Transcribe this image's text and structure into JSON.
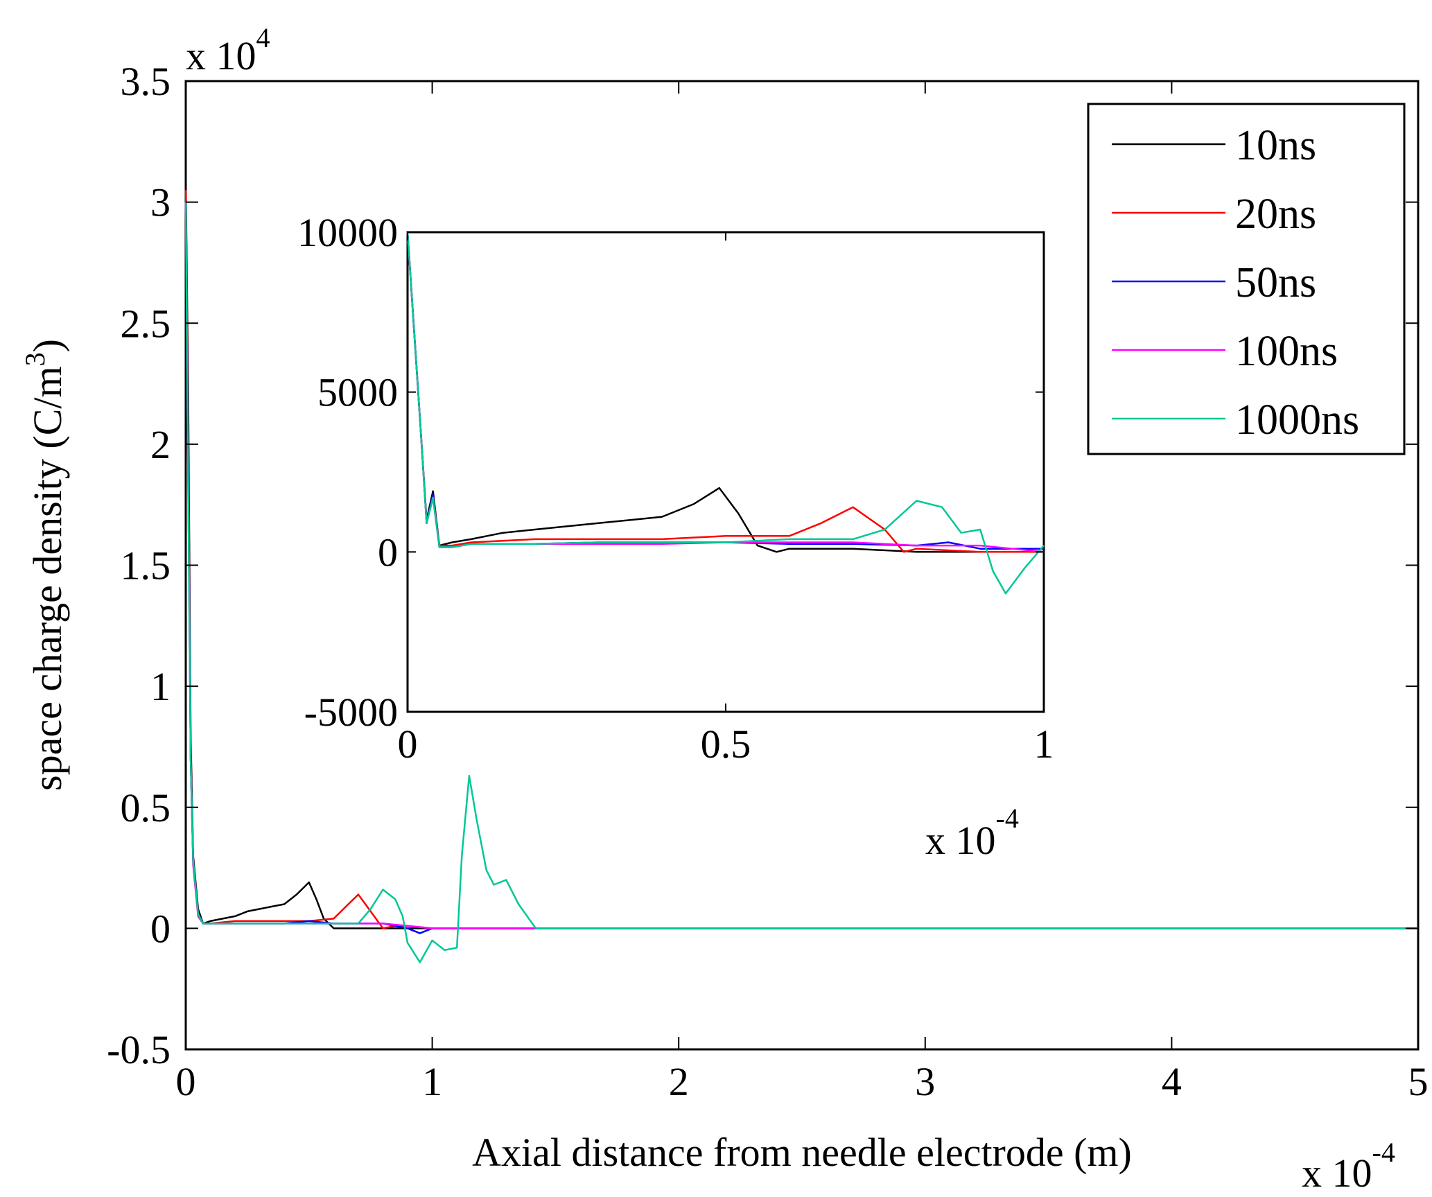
{
  "chart_data": [
    {
      "id": "main",
      "type": "line",
      "xlabel": "Axial distance from needle electrode (m)",
      "ylabel": "space charge density (C/m",
      "ylabel_sup": "3",
      "ylabel_close": ")",
      "xlim": [
        0,
        5
      ],
      "ylim": [
        -0.5,
        3.5
      ],
      "xticks": [
        0,
        1,
        2,
        3,
        4,
        5
      ],
      "yticks": [
        -0.5,
        0,
        0.5,
        1,
        1.5,
        2,
        2.5,
        3,
        3.5
      ],
      "xtick_labels": [
        "0",
        "1",
        "2",
        "3",
        "4",
        "5"
      ],
      "ytick_labels": [
        "-0.5",
        "0",
        "0.5",
        "1",
        "1.5",
        "2",
        "2.5",
        "3",
        "3.5"
      ],
      "x_multiplier_base": "x 10",
      "x_multiplier_exp": "-4",
      "y_multiplier_base": "x 10",
      "y_multiplier_exp": "4",
      "series": [
        {
          "name": "10ns",
          "color": "#000000",
          "points": [
            [
              0,
              3.1
            ],
            [
              0.01,
              2.2
            ],
            [
              0.02,
              0.8
            ],
            [
              0.03,
              0.3
            ],
            [
              0.05,
              0.08
            ],
            [
              0.07,
              0.02
            ],
            [
              0.1,
              0.03
            ],
            [
              0.15,
              0.04
            ],
            [
              0.2,
              0.05
            ],
            [
              0.25,
              0.07
            ],
            [
              0.3,
              0.08
            ],
            [
              0.35,
              0.09
            ],
            [
              0.4,
              0.1
            ],
            [
              0.45,
              0.14
            ],
            [
              0.5,
              0.19
            ],
            [
              0.53,
              0.12
            ],
            [
              0.56,
              0.04
            ],
            [
              0.6,
              0.0
            ],
            [
              0.7,
              0.0
            ],
            [
              0.8,
              0.0
            ],
            [
              0.9,
              0.0
            ],
            [
              1.0,
              0.0
            ],
            [
              1.4,
              0.0
            ],
            [
              5,
              0.0
            ]
          ]
        },
        {
          "name": "20ns",
          "color": "#ff0000",
          "points": [
            [
              0,
              3.05
            ],
            [
              0.01,
              2.0
            ],
            [
              0.02,
              0.7
            ],
            [
              0.03,
              0.28
            ],
            [
              0.05,
              0.06
            ],
            [
              0.07,
              0.02
            ],
            [
              0.1,
              0.02
            ],
            [
              0.2,
              0.03
            ],
            [
              0.3,
              0.03
            ],
            [
              0.4,
              0.03
            ],
            [
              0.5,
              0.03
            ],
            [
              0.6,
              0.04
            ],
            [
              0.65,
              0.09
            ],
            [
              0.7,
              0.14
            ],
            [
              0.75,
              0.07
            ],
            [
              0.8,
              0.0
            ],
            [
              0.85,
              0.01
            ],
            [
              0.9,
              0.01
            ],
            [
              1.0,
              0.0
            ],
            [
              5,
              0.0
            ]
          ]
        },
        {
          "name": "50ns",
          "color": "#0000ff",
          "points": [
            [
              0,
              3.0
            ],
            [
              0.01,
              1.9
            ],
            [
              0.02,
              0.7
            ],
            [
              0.03,
              0.27
            ],
            [
              0.05,
              0.06
            ],
            [
              0.07,
              0.02
            ],
            [
              0.1,
              0.02
            ],
            [
              0.2,
              0.02
            ],
            [
              0.3,
              0.02
            ],
            [
              0.4,
              0.02
            ],
            [
              0.5,
              0.03
            ],
            [
              0.6,
              0.02
            ],
            [
              0.7,
              0.02
            ],
            [
              0.8,
              0.02
            ],
            [
              0.9,
              0.0
            ],
            [
              0.95,
              -0.02
            ],
            [
              1.0,
              0.0
            ],
            [
              5,
              0.0
            ]
          ]
        },
        {
          "name": "100ns",
          "color": "#ff00ff",
          "points": [
            [
              0,
              3.0
            ],
            [
              0.01,
              1.8
            ],
            [
              0.02,
              0.7
            ],
            [
              0.03,
              0.26
            ],
            [
              0.05,
              0.05
            ],
            [
              0.07,
              0.02
            ],
            [
              0.1,
              0.02
            ],
            [
              0.2,
              0.02
            ],
            [
              0.3,
              0.02
            ],
            [
              0.4,
              0.02
            ],
            [
              0.5,
              0.02
            ],
            [
              0.6,
              0.02
            ],
            [
              0.7,
              0.02
            ],
            [
              0.8,
              0.02
            ],
            [
              0.9,
              0.01
            ],
            [
              1.0,
              0.0
            ],
            [
              1.4,
              0.0
            ],
            [
              5,
              0.0
            ]
          ]
        },
        {
          "name": "1000ns",
          "color": "#00c896",
          "points": [
            [
              0,
              3.0
            ],
            [
              0.01,
              1.8
            ],
            [
              0.02,
              0.7
            ],
            [
              0.03,
              0.28
            ],
            [
              0.05,
              0.06
            ],
            [
              0.07,
              0.02
            ],
            [
              0.1,
              0.02
            ],
            [
              0.2,
              0.02
            ],
            [
              0.3,
              0.02
            ],
            [
              0.4,
              0.02
            ],
            [
              0.5,
              0.02
            ],
            [
              0.6,
              0.02
            ],
            [
              0.7,
              0.02
            ],
            [
              0.75,
              0.08
            ],
            [
              0.8,
              0.16
            ],
            [
              0.85,
              0.12
            ],
            [
              0.88,
              0.05
            ],
            [
              0.9,
              -0.06
            ],
            [
              0.95,
              -0.14
            ],
            [
              1.0,
              -0.05
            ],
            [
              1.05,
              -0.09
            ],
            [
              1.1,
              -0.08
            ],
            [
              1.12,
              0.3
            ],
            [
              1.15,
              0.63
            ],
            [
              1.18,
              0.45
            ],
            [
              1.22,
              0.24
            ],
            [
              1.25,
              0.18
            ],
            [
              1.3,
              0.2
            ],
            [
              1.35,
              0.1
            ],
            [
              1.42,
              0.0
            ],
            [
              5,
              0.0
            ]
          ]
        }
      ],
      "legend": {
        "position": "top-right"
      }
    },
    {
      "id": "inset",
      "type": "line",
      "xlim": [
        0,
        1
      ],
      "ylim": [
        -5000,
        10000
      ],
      "xticks": [
        0,
        0.5,
        1
      ],
      "yticks": [
        -5000,
        0,
        5000,
        10000
      ],
      "xtick_labels": [
        "0",
        "0.5",
        "1"
      ],
      "ytick_labels": [
        "-5000",
        "0",
        "5000",
        "10000"
      ],
      "x_multiplier_base": "x 10",
      "x_multiplier_exp": "-4",
      "series": [
        {
          "name": "10ns",
          "color": "#000000",
          "points": [
            [
              0,
              10000
            ],
            [
              0.01,
              7000
            ],
            [
              0.02,
              4000
            ],
            [
              0.03,
              1000
            ],
            [
              0.04,
              1900
            ],
            [
              0.05,
              200
            ],
            [
              0.07,
              300
            ],
            [
              0.1,
              400
            ],
            [
              0.15,
              600
            ],
            [
              0.2,
              700
            ],
            [
              0.25,
              800
            ],
            [
              0.3,
              900
            ],
            [
              0.35,
              1000
            ],
            [
              0.4,
              1100
            ],
            [
              0.45,
              1500
            ],
            [
              0.49,
              2000
            ],
            [
              0.52,
              1200
            ],
            [
              0.55,
              200
            ],
            [
              0.58,
              0
            ],
            [
              0.6,
              100
            ],
            [
              0.7,
              100
            ],
            [
              0.8,
              0
            ],
            [
              1.0,
              0
            ]
          ]
        },
        {
          "name": "20ns",
          "color": "#ff0000",
          "points": [
            [
              0,
              10000
            ],
            [
              0.01,
              7000
            ],
            [
              0.02,
              4000
            ],
            [
              0.03,
              900
            ],
            [
              0.04,
              1800
            ],
            [
              0.05,
              200
            ],
            [
              0.07,
              200
            ],
            [
              0.1,
              300
            ],
            [
              0.2,
              400
            ],
            [
              0.3,
              400
            ],
            [
              0.4,
              400
            ],
            [
              0.5,
              500
            ],
            [
              0.6,
              500
            ],
            [
              0.65,
              900
            ],
            [
              0.7,
              1400
            ],
            [
              0.75,
              700
            ],
            [
              0.78,
              0
            ],
            [
              0.8,
              100
            ],
            [
              0.9,
              0
            ],
            [
              1.0,
              0
            ]
          ]
        },
        {
          "name": "50ns",
          "color": "#0000ff",
          "points": [
            [
              0,
              10000
            ],
            [
              0.01,
              7000
            ],
            [
              0.02,
              4000
            ],
            [
              0.03,
              900
            ],
            [
              0.04,
              1800
            ],
            [
              0.05,
              150
            ],
            [
              0.07,
              150
            ],
            [
              0.1,
              250
            ],
            [
              0.2,
              250
            ],
            [
              0.3,
              300
            ],
            [
              0.4,
              300
            ],
            [
              0.5,
              300
            ],
            [
              0.6,
              250
            ],
            [
              0.7,
              250
            ],
            [
              0.8,
              200
            ],
            [
              0.85,
              300
            ],
            [
              0.9,
              100
            ],
            [
              1.0,
              100
            ]
          ]
        },
        {
          "name": "100ns",
          "color": "#ff00ff",
          "points": [
            [
              0,
              10000
            ],
            [
              0.01,
              7000
            ],
            [
              0.02,
              4000
            ],
            [
              0.03,
              900
            ],
            [
              0.04,
              1700
            ],
            [
              0.05,
              150
            ],
            [
              0.07,
              150
            ],
            [
              0.1,
              250
            ],
            [
              0.2,
              250
            ],
            [
              0.3,
              250
            ],
            [
              0.4,
              250
            ],
            [
              0.5,
              300
            ],
            [
              0.6,
              300
            ],
            [
              0.7,
              300
            ],
            [
              0.8,
              200
            ],
            [
              0.9,
              200
            ],
            [
              1.0,
              0
            ]
          ]
        },
        {
          "name": "1000ns",
          "color": "#00c896",
          "points": [
            [
              0,
              10000
            ],
            [
              0.01,
              7000
            ],
            [
              0.02,
              4000
            ],
            [
              0.03,
              900
            ],
            [
              0.04,
              1700
            ],
            [
              0.05,
              150
            ],
            [
              0.07,
              150
            ],
            [
              0.1,
              250
            ],
            [
              0.2,
              250
            ],
            [
              0.3,
              300
            ],
            [
              0.4,
              300
            ],
            [
              0.5,
              300
            ],
            [
              0.6,
              400
            ],
            [
              0.7,
              400
            ],
            [
              0.75,
              700
            ],
            [
              0.8,
              1600
            ],
            [
              0.84,
              1400
            ],
            [
              0.87,
              600
            ],
            [
              0.9,
              700
            ],
            [
              0.92,
              -600
            ],
            [
              0.94,
              -1300
            ],
            [
              0.97,
              -500
            ],
            [
              1.0,
              200
            ]
          ]
        }
      ]
    }
  ]
}
